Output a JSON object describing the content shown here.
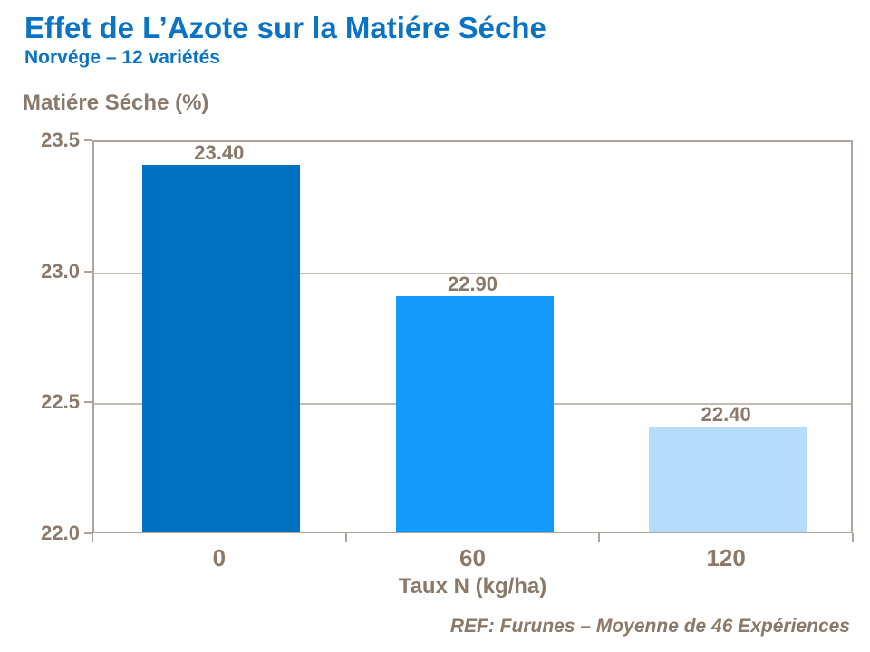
{
  "slide": {
    "title": "Effet de L’Azote sur la Matiére Séche",
    "subtitle": "Norvége – 12 variétés",
    "footer": "REF: Furunes – Moyenne de 46 Expériences"
  },
  "colors": {
    "title_blue": "#0B73C4",
    "text_brown": "#8A7968",
    "axis_line": "#ADA49A",
    "gridline": "#C2BBB0",
    "bars": [
      "#0070C0",
      "#149AFC",
      "#B5DCFC"
    ]
  },
  "chart_data": {
    "type": "bar",
    "title": "Effet de L’Azote sur la Matiére Séche",
    "subtitle": "Norvége – 12 variétés",
    "categories": [
      "0",
      "60",
      "120"
    ],
    "values": [
      23.4,
      22.9,
      22.4
    ],
    "value_labels": [
      "23.40",
      "22.90",
      "22.40"
    ],
    "xlabel": "Taux N (kg/ha)",
    "ylabel": "Matiére Séche (%)",
    "ylim": [
      22.0,
      23.5
    ],
    "yticks": [
      23.5,
      23.0,
      22.5,
      22.0
    ],
    "ytick_labels": [
      "23.5",
      "23.0",
      "22.5",
      "22.0"
    ],
    "grid": true,
    "legend": "none",
    "bar_colors": [
      "#0070C0",
      "#149AFC",
      "#B5DCFC"
    ]
  }
}
